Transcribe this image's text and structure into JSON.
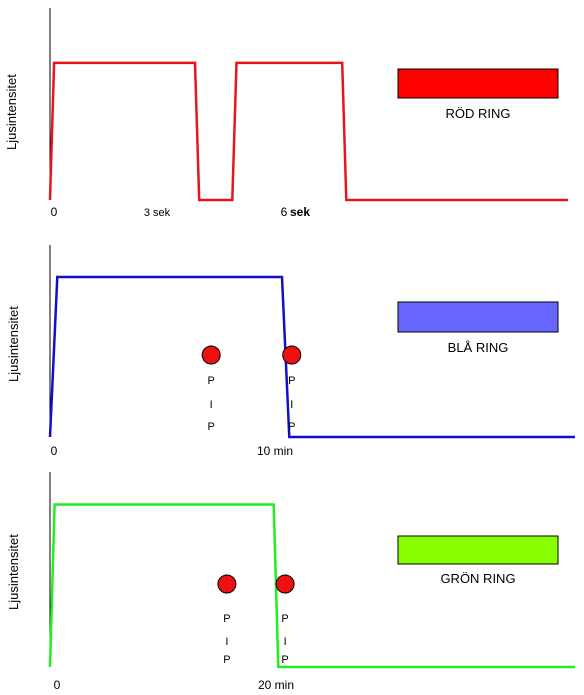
{
  "chart_data": [
    {
      "type": "line",
      "ylabel": "Ljusintensitet",
      "color": "#e8141b",
      "tick_labels": [
        {
          "text": "0"
        },
        {
          "text": "3 sek"
        },
        {
          "text": "6"
        },
        {
          "text": "sek"
        }
      ],
      "legend": {
        "label": "RÖD RING",
        "swatch": "#fe0000"
      },
      "x": [
        0,
        0.1,
        3.5,
        3.6,
        4.4,
        4.5,
        7.05,
        7.15,
        12.5
      ],
      "y": [
        0,
        1,
        1,
        0,
        0,
        1,
        1,
        0,
        0
      ],
      "x_unit": "sek",
      "ylim": [
        0,
        1.4
      ],
      "beeps": []
    },
    {
      "type": "line",
      "ylabel": "Ljusintensitet",
      "color": "#1010c8",
      "tick_labels": [
        {
          "text": "0"
        },
        {
          "text": "10 min"
        }
      ],
      "legend": {
        "label": "BLÅ RING",
        "swatch": "#6666ff"
      },
      "x": [
        0,
        0.3,
        9.5,
        9.8,
        21.5
      ],
      "y": [
        0,
        1,
        1,
        0,
        0
      ],
      "x_unit": "min",
      "ylim": [
        0,
        1.2
      ],
      "beeps": [
        {
          "x": 6.6,
          "letters": [
            "P",
            "I",
            "P"
          ]
        },
        {
          "x": 9.9,
          "letters": [
            "P",
            "I",
            "P"
          ]
        }
      ]
    },
    {
      "type": "line",
      "ylabel": "Ljusintensitet",
      "color": "#22ee22",
      "tick_labels": [
        {
          "text": "0"
        },
        {
          "text": "20 min"
        }
      ],
      "legend": {
        "label": "GRÖN RING",
        "swatch": "#88ff00"
      },
      "x": [
        0,
        0.4,
        19.6,
        20.0,
        46.0
      ],
      "y": [
        0,
        1,
        1,
        0,
        0
      ],
      "x_unit": "min",
      "ylim": [
        0,
        1.2
      ],
      "beeps": [
        {
          "x": 15.5,
          "letters": [
            "P",
            "I",
            "P"
          ]
        },
        {
          "x": 20.6,
          "letters": [
            "P",
            "I",
            "P"
          ]
        }
      ]
    }
  ]
}
